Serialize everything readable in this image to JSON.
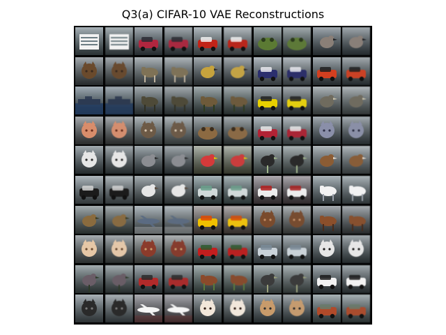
{
  "title": "Q3(a) CIFAR-10 VAE Reconstructions",
  "grid": {
    "rows": 10,
    "cols": 10,
    "pairs": [
      {
        "row": 0,
        "pair": 0,
        "subject": "building",
        "bg": "#aeb7bd",
        "fg": "#f2f2f2",
        "accent": "#6c7d84"
      },
      {
        "row": 0,
        "pair": 1,
        "subject": "car",
        "bg": "#8b8a90",
        "fg": "#b1263f",
        "accent": "#2b2b34"
      },
      {
        "row": 0,
        "pair": 2,
        "subject": "truck",
        "bg": "#6b6b6b",
        "fg": "#c22418",
        "accent": "#f0f0f0"
      },
      {
        "row": 0,
        "pair": 3,
        "subject": "frog",
        "bg": "#3b4c27",
        "fg": "#5b7a33",
        "accent": "#2a3a1b"
      },
      {
        "row": 0,
        "pair": 4,
        "subject": "bird",
        "bg": "#3a3c40",
        "fg": "#8a7f77",
        "accent": "#1f1f22"
      },
      {
        "row": 1,
        "pair": 0,
        "subject": "dog",
        "bg": "#a8aeb3",
        "fg": "#6a4a2c",
        "accent": "#3a2a1f"
      },
      {
        "row": 1,
        "pair": 1,
        "subject": "deer",
        "bg": "#a59f88",
        "fg": "#7f7256",
        "accent": "#c1b5a0"
      },
      {
        "row": 1,
        "pair": 2,
        "subject": "bird",
        "bg": "#5e5a4c",
        "fg": "#c6a33d",
        "accent": "#2d2a24"
      },
      {
        "row": 1,
        "pair": 3,
        "subject": "car",
        "bg": "#4b5d79",
        "fg": "#2b2f6e",
        "accent": "#e9e9ef"
      },
      {
        "row": 1,
        "pair": 4,
        "subject": "car",
        "bg": "#f5f5f5",
        "fg": "#d33f20",
        "accent": "#202020"
      },
      {
        "row": 2,
        "pair": 0,
        "subject": "ship",
        "bg": "#8fb3d4",
        "fg": "#2c3a52",
        "accent": "#1f3b63"
      },
      {
        "row": 2,
        "pair": 1,
        "subject": "deer",
        "bg": "#7a8a52",
        "fg": "#4e4a38",
        "accent": "#2f2f22"
      },
      {
        "row": 2,
        "pair": 2,
        "subject": "deer",
        "bg": "#4f6b33",
        "fg": "#6e5a3a",
        "accent": "#2c3a1d"
      },
      {
        "row": 2,
        "pair": 3,
        "subject": "car",
        "bg": "#c7c19a",
        "fg": "#e7d000",
        "accent": "#222222"
      },
      {
        "row": 2,
        "pair": 4,
        "subject": "bird",
        "bg": "#9a9a86",
        "fg": "#6f6b5e",
        "accent": "#c9c2aa"
      },
      {
        "row": 3,
        "pair": 0,
        "subject": "cat",
        "bg": "#b45f3e",
        "fg": "#d98d6b",
        "accent": "#6a2d1c"
      },
      {
        "row": 3,
        "pair": 1,
        "subject": "cat",
        "bg": "#2a2a2a",
        "fg": "#6d5a46",
        "accent": "#d9c7b1"
      },
      {
        "row": 3,
        "pair": 2,
        "subject": "frog",
        "bg": "#6b5a3a",
        "fg": "#8c6a42",
        "accent": "#3b2d1d"
      },
      {
        "row": 3,
        "pair": 3,
        "subject": "truck",
        "bg": "#9a7b7b",
        "fg": "#b22335",
        "accent": "#e8e8e8"
      },
      {
        "row": 3,
        "pair": 4,
        "subject": "cat",
        "bg": "#555a77",
        "fg": "#8a8fa9",
        "accent": "#2d2f45"
      },
      {
        "row": 4,
        "pair": 0,
        "subject": "dog",
        "bg": "#1e2a35",
        "fg": "#e6e6e6",
        "accent": "#2b2b2b"
      },
      {
        "row": 4,
        "pair": 1,
        "subject": "bird",
        "bg": "#f3f3f3",
        "fg": "#8b8d92",
        "accent": "#2a2a2a"
      },
      {
        "row": 4,
        "pair": 2,
        "subject": "bird",
        "bg": "#1f2a18",
        "fg": "#d43a3a",
        "accent": "#e7c300"
      },
      {
        "row": 4,
        "pair": 3,
        "subject": "ostrich",
        "bg": "#6b8f5a",
        "fg": "#2a2a2a",
        "accent": "#a0b68b"
      },
      {
        "row": 4,
        "pair": 4,
        "subject": "bird",
        "bg": "#8d9aa8",
        "fg": "#8b5c34",
        "accent": "#e6d7c6"
      },
      {
        "row": 5,
        "pair": 0,
        "subject": "car",
        "bg": "#8a9aa6",
        "fg": "#1b1b1b",
        "accent": "#d2d2d2"
      },
      {
        "row": 5,
        "pair": 1,
        "subject": "bird",
        "bg": "#2b2b2b",
        "fg": "#e6e6e6",
        "accent": "#5a4a3b"
      },
      {
        "row": 5,
        "pair": 2,
        "subject": "car",
        "bg": "#2f3a3a",
        "fg": "#cfd8d8",
        "accent": "#6aa08c"
      },
      {
        "row": 5,
        "pair": 3,
        "subject": "truck",
        "bg": "#b5b7c2",
        "fg": "#ededed",
        "accent": "#b21e1e"
      },
      {
        "row": 5,
        "pair": 4,
        "subject": "horse",
        "bg": "#2a2f3a",
        "fg": "#f2f2f2",
        "accent": "#9aa0aa"
      },
      {
        "row": 6,
        "pair": 0,
        "subject": "bird",
        "bg": "#6e6f34",
        "fg": "#8a6b3e",
        "accent": "#3a3a1f"
      },
      {
        "row": 6,
        "pair": 1,
        "subject": "airplane",
        "bg": "#c9d9f0",
        "fg": "#5b6b82",
        "accent": "#f2f2f2"
      },
      {
        "row": 6,
        "pair": 2,
        "subject": "car",
        "bg": "#1a1a1a",
        "fg": "#f0c000",
        "accent": "#e04a00"
      },
      {
        "row": 6,
        "pair": 3,
        "subject": "cat",
        "bg": "#2b1a14",
        "fg": "#7a4b2d",
        "accent": "#c28b62"
      },
      {
        "row": 6,
        "pair": 4,
        "subject": "horse",
        "bg": "#f2f2f2",
        "fg": "#8b4f2b",
        "accent": "#4a2a18"
      },
      {
        "row": 7,
        "pair": 0,
        "subject": "cat",
        "bg": "#c9a07b",
        "fg": "#e6c7a6",
        "accent": "#6a4a30"
      },
      {
        "row": 7,
        "pair": 1,
        "subject": "dog",
        "bg": "#f0f0f0",
        "fg": "#8b3b2b",
        "accent": "#c99a6a"
      },
      {
        "row": 7,
        "pair": 2,
        "subject": "car",
        "bg": "#2d2d2d",
        "fg": "#c31e1e",
        "accent": "#2e5a2e"
      },
      {
        "row": 7,
        "pair": 3,
        "subject": "car",
        "bg": "#1e1e1e",
        "fg": "#c9d2d9",
        "accent": "#7a8b98"
      },
      {
        "row": 7,
        "pair": 4,
        "subject": "cat",
        "bg": "#5a3c24",
        "fg": "#e6e6e6",
        "accent": "#1a1a1a"
      },
      {
        "row": 8,
        "pair": 0,
        "subject": "ostrich",
        "bg": "#6f7f66",
        "fg": "#6a5d67",
        "accent": "#2e3a28"
      },
      {
        "row": 8,
        "pair": 1,
        "subject": "car",
        "bg": "#a9b8b6",
        "fg": "#b22a2a",
        "accent": "#2a2a2a"
      },
      {
        "row": 8,
        "pair": 2,
        "subject": "horse",
        "bg": "#e6efe6",
        "fg": "#8b4a2b",
        "accent": "#5b7a3a"
      },
      {
        "row": 8,
        "pair": 3,
        "subject": "ostrich",
        "bg": "#6c6f58",
        "fg": "#3b3b3b",
        "accent": "#9aa07a"
      },
      {
        "row": 8,
        "pair": 4,
        "subject": "car",
        "bg": "#c5c8cf",
        "fg": "#f2f2f2",
        "accent": "#1b1b1b"
      },
      {
        "row": 9,
        "pair": 0,
        "subject": "dog",
        "bg": "#4d5b4d",
        "fg": "#2a2a2a",
        "accent": "#7a7a7a"
      },
      {
        "row": 9,
        "pair": 1,
        "subject": "airplane",
        "bg": "#c8d6e6",
        "fg": "#f5f5f5",
        "accent": "#8b2b2b"
      },
      {
        "row": 9,
        "pair": 2,
        "subject": "cat",
        "bg": "#5a3e2b",
        "fg": "#f2e7da",
        "accent": "#2b1a12"
      },
      {
        "row": 9,
        "pair": 3,
        "subject": "dog",
        "bg": "#f3f3f3",
        "fg": "#c89b6b",
        "accent": "#2a2a2a"
      },
      {
        "row": 9,
        "pair": 4,
        "subject": "truck",
        "bg": "#2d3a2d",
        "fg": "#b04a2a",
        "accent": "#6a7a6a"
      }
    ]
  }
}
